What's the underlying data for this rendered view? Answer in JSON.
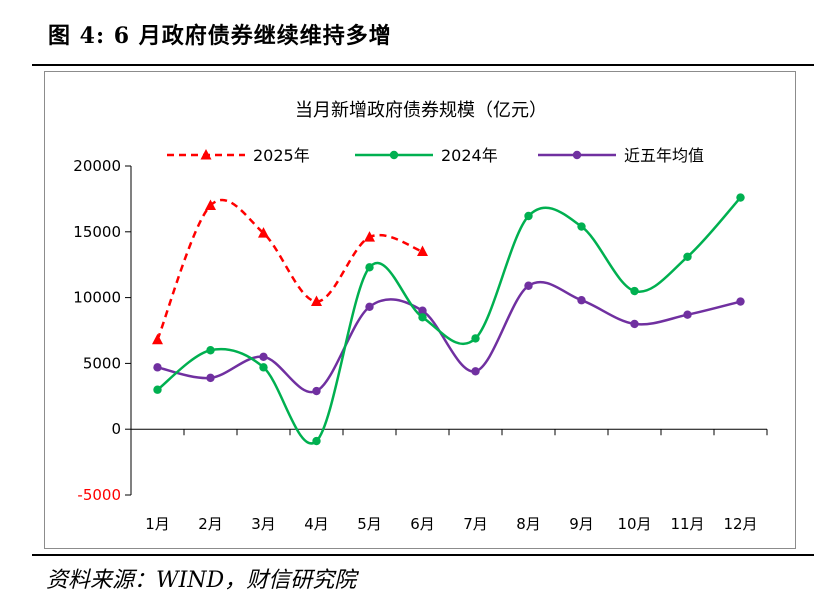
{
  "figure": {
    "title": "图 4:  6 月政府债券继续维持多增",
    "source": "资料来源：WIND，财信研究院"
  },
  "chart_data": {
    "type": "line",
    "title": "当月新增政府债券规模（亿元）",
    "categories": [
      "1月",
      "2月",
      "3月",
      "4月",
      "5月",
      "6月",
      "7月",
      "8月",
      "9月",
      "10月",
      "11月",
      "12月"
    ],
    "ylim": [
      -5000,
      20000
    ],
    "yticks": [
      -5000,
      0,
      5000,
      10000,
      15000,
      20000
    ],
    "grid": false,
    "legend_position": "top",
    "series": [
      {
        "name": "2025年",
        "color": "#ff0000",
        "dashed": true,
        "marker": "triangle",
        "values": [
          6800,
          17000,
          14900,
          9700,
          14600,
          13500,
          null,
          null,
          null,
          null,
          null,
          null
        ]
      },
      {
        "name": "2024年",
        "color": "#00b050",
        "dashed": false,
        "marker": "circle",
        "values": [
          3000,
          6000,
          4700,
          -900,
          12300,
          8500,
          6900,
          16200,
          15400,
          10500,
          13100,
          17600
        ]
      },
      {
        "name": "近五年均值",
        "color": "#7030a0",
        "dashed": false,
        "marker": "circle",
        "values": [
          4700,
          3900,
          5500,
          2900,
          9300,
          9000,
          4400,
          10900,
          9800,
          8000,
          8700,
          9700
        ]
      }
    ]
  }
}
